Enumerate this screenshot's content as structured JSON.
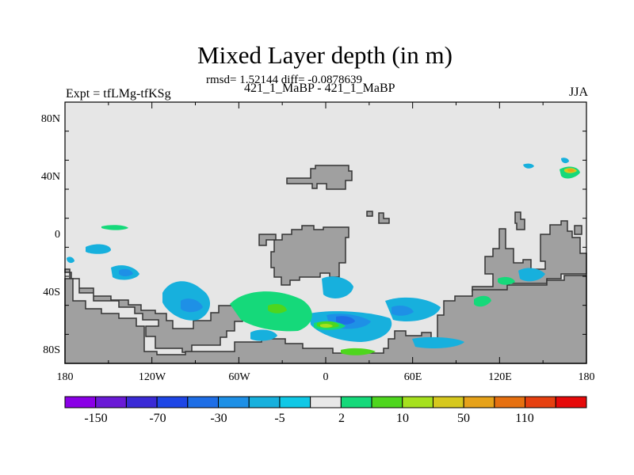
{
  "title": "Mixed Layer depth (in m)",
  "stats": "rmsd= 1.52144 diff= -0.0878639",
  "subtitle": "421_1_MaBP - 421_1_MaBP",
  "left_label": "Expt = tfLMg-tfKSg",
  "right_label": "JJA",
  "map": {
    "lat_ticks": [
      "80N",
      "40N",
      "0",
      "40S",
      "80S"
    ],
    "lon_ticks": [
      "180",
      "120W",
      "60W",
      "0",
      "60E",
      "120E",
      "180"
    ],
    "land_color": "#a0a0a0",
    "ocean_color": "#e6e6e6"
  },
  "colorbar": {
    "colors": [
      "#8a00e6",
      "#6a1ad6",
      "#3a2ad6",
      "#1e46e6",
      "#1e6ee6",
      "#1e90e6",
      "#17b0dd",
      "#10c8e6",
      "#e8e8e8",
      "#15d97a",
      "#4ed61e",
      "#a6e01e",
      "#d6c81e",
      "#e6a21a",
      "#e67010",
      "#e64010",
      "#e60a0a"
    ],
    "labels": [
      "-150",
      "-70",
      "-30",
      "-5",
      "2",
      "10",
      "50",
      "110"
    ]
  }
}
